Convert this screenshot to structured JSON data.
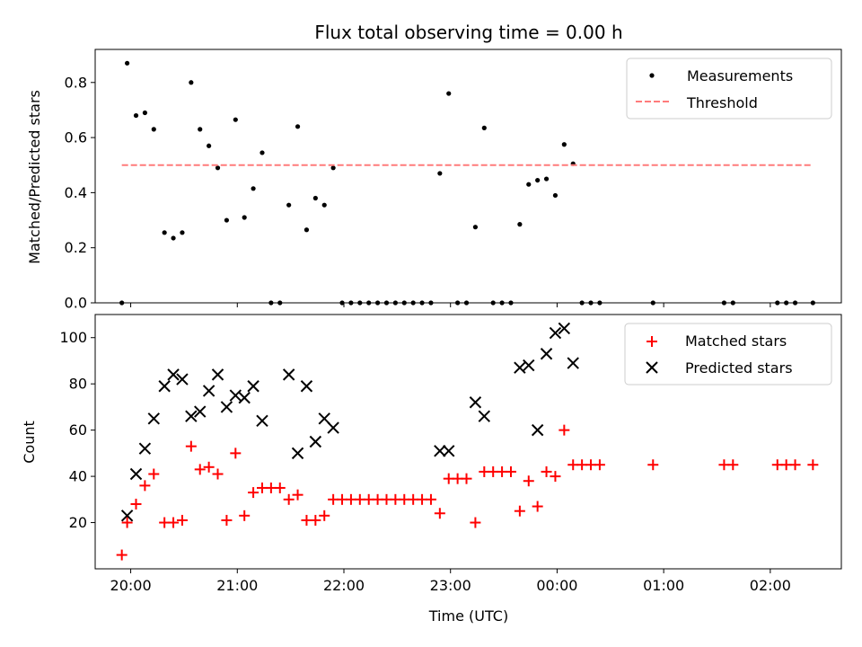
{
  "chart_data": [
    {
      "type": "scatter",
      "title": "Flux total observing time = 0.00 h",
      "xlabel": "",
      "ylabel": "Matched/Predicted stars",
      "xlim": [
        "19:40",
        "02:40"
      ],
      "ylim": [
        0,
        0.92
      ],
      "yticks": [
        0.0,
        0.2,
        0.4,
        0.6,
        0.8
      ],
      "ytick_labels": [
        "0.0",
        "0.2",
        "0.4",
        "0.6",
        "0.8"
      ],
      "grid": false,
      "legend_position": "top-right",
      "series": [
        {
          "name": "Measurements",
          "marker": "dot",
          "color": "#000000",
          "points": [
            [
              "19:55",
              0.0
            ],
            [
              "19:58",
              0.87
            ],
            [
              "20:03",
              0.68
            ],
            [
              "20:08",
              0.69
            ],
            [
              "20:13",
              0.63
            ],
            [
              "20:19",
              0.255
            ],
            [
              "20:24",
              0.235
            ],
            [
              "20:29",
              0.255
            ],
            [
              "20:34",
              0.8
            ],
            [
              "20:39",
              0.63
            ],
            [
              "20:44",
              0.57
            ],
            [
              "20:49",
              0.49
            ],
            [
              "20:54",
              0.3
            ],
            [
              "20:59",
              0.665
            ],
            [
              "21:04",
              0.31
            ],
            [
              "21:09",
              0.415
            ],
            [
              "21:14",
              0.545
            ],
            [
              "21:19",
              0.0
            ],
            [
              "21:24",
              0.0
            ],
            [
              "21:29",
              0.355
            ],
            [
              "21:34",
              0.64
            ],
            [
              "21:39",
              0.265
            ],
            [
              "21:44",
              0.38
            ],
            [
              "21:49",
              0.355
            ],
            [
              "21:54",
              0.49
            ],
            [
              "21:59",
              0.0
            ],
            [
              "22:04",
              0.0
            ],
            [
              "22:09",
              0.0
            ],
            [
              "22:14",
              0.0
            ],
            [
              "22:19",
              0.0
            ],
            [
              "22:24",
              0.0
            ],
            [
              "22:29",
              0.0
            ],
            [
              "22:34",
              0.0
            ],
            [
              "22:39",
              0.0
            ],
            [
              "22:44",
              0.0
            ],
            [
              "22:49",
              0.0
            ],
            [
              "22:54",
              0.47
            ],
            [
              "22:59",
              0.76
            ],
            [
              "23:04",
              0.0
            ],
            [
              "23:09",
              0.0
            ],
            [
              "23:14",
              0.275
            ],
            [
              "23:19",
              0.635
            ],
            [
              "23:24",
              0.0
            ],
            [
              "23:29",
              0.0
            ],
            [
              "23:34",
              0.0
            ],
            [
              "23:39",
              0.285
            ],
            [
              "23:44",
              0.43
            ],
            [
              "23:49",
              0.445
            ],
            [
              "23:54",
              0.45
            ],
            [
              "23:59",
              0.39
            ],
            [
              "00:04",
              0.575
            ],
            [
              "00:09",
              0.505
            ],
            [
              "00:14",
              0.0
            ],
            [
              "00:19",
              0.0
            ],
            [
              "00:24",
              0.0
            ],
            [
              "00:54",
              0.0
            ],
            [
              "01:34",
              0.0
            ],
            [
              "01:39",
              0.0
            ],
            [
              "02:04",
              0.0
            ],
            [
              "02:09",
              0.0
            ],
            [
              "02:14",
              0.0
            ],
            [
              "02:24",
              0.0
            ]
          ]
        },
        {
          "name": "Threshold",
          "marker": "dashed-line",
          "color": "#ff7b7b",
          "points": [
            [
              "19:55",
              0.5
            ],
            [
              "02:24",
              0.5
            ]
          ]
        }
      ]
    },
    {
      "type": "scatter",
      "title": "",
      "xlabel": "Time (UTC)",
      "ylabel": "Count",
      "xlim": [
        "19:40",
        "02:40"
      ],
      "ylim": [
        0,
        110
      ],
      "yticks": [
        20,
        40,
        60,
        80,
        100
      ],
      "ytick_labels": [
        "20",
        "40",
        "60",
        "80",
        "100"
      ],
      "xticks": [
        "20:00",
        "21:00",
        "22:00",
        "23:00",
        "00:00",
        "01:00",
        "02:00"
      ],
      "grid": false,
      "legend_position": "top-right",
      "series": [
        {
          "name": "Matched stars",
          "marker": "plus",
          "color": "#ff0000",
          "points": [
            [
              "19:55",
              6
            ],
            [
              "19:58",
              20
            ],
            [
              "20:03",
              28
            ],
            [
              "20:08",
              36
            ],
            [
              "20:13",
              41
            ],
            [
              "20:19",
              20
            ],
            [
              "20:24",
              20
            ],
            [
              "20:29",
              21
            ],
            [
              "20:34",
              53
            ],
            [
              "20:39",
              43
            ],
            [
              "20:44",
              44
            ],
            [
              "20:49",
              41
            ],
            [
              "20:54",
              21
            ],
            [
              "20:59",
              50
            ],
            [
              "21:04",
              23
            ],
            [
              "21:09",
              33
            ],
            [
              "21:14",
              35
            ],
            [
              "21:19",
              35
            ],
            [
              "21:24",
              35
            ],
            [
              "21:29",
              30
            ],
            [
              "21:34",
              32
            ],
            [
              "21:39",
              21
            ],
            [
              "21:44",
              21
            ],
            [
              "21:49",
              23
            ],
            [
              "21:54",
              30
            ],
            [
              "21:59",
              30
            ],
            [
              "22:04",
              30
            ],
            [
              "22:09",
              30
            ],
            [
              "22:14",
              30
            ],
            [
              "22:19",
              30
            ],
            [
              "22:24",
              30
            ],
            [
              "22:29",
              30
            ],
            [
              "22:34",
              30
            ],
            [
              "22:39",
              30
            ],
            [
              "22:44",
              30
            ],
            [
              "22:49",
              30
            ],
            [
              "22:54",
              24
            ],
            [
              "22:59",
              39
            ],
            [
              "23:04",
              39
            ],
            [
              "23:09",
              39
            ],
            [
              "23:14",
              20
            ],
            [
              "23:19",
              42
            ],
            [
              "23:24",
              42
            ],
            [
              "23:29",
              42
            ],
            [
              "23:34",
              42
            ],
            [
              "23:39",
              25
            ],
            [
              "23:44",
              38
            ],
            [
              "23:49",
              27
            ],
            [
              "23:54",
              42
            ],
            [
              "23:59",
              40
            ],
            [
              "00:04",
              60
            ],
            [
              "00:09",
              45
            ],
            [
              "00:14",
              45
            ],
            [
              "00:19",
              45
            ],
            [
              "00:24",
              45
            ],
            [
              "00:54",
              45
            ],
            [
              "01:34",
              45
            ],
            [
              "01:39",
              45
            ],
            [
              "02:04",
              45
            ],
            [
              "02:09",
              45
            ],
            [
              "02:14",
              45
            ],
            [
              "02:24",
              45
            ]
          ]
        },
        {
          "name": "Predicted stars",
          "marker": "x",
          "color": "#000000",
          "points": [
            [
              "19:58",
              23
            ],
            [
              "20:03",
              41
            ],
            [
              "20:08",
              52
            ],
            [
              "20:13",
              65
            ],
            [
              "20:19",
              79
            ],
            [
              "20:24",
              84
            ],
            [
              "20:29",
              82
            ],
            [
              "20:34",
              66
            ],
            [
              "20:39",
              68
            ],
            [
              "20:44",
              77
            ],
            [
              "20:49",
              84
            ],
            [
              "20:54",
              70
            ],
            [
              "20:59",
              75
            ],
            [
              "21:04",
              74
            ],
            [
              "21:09",
              79
            ],
            [
              "21:14",
              64
            ],
            [
              "21:29",
              84
            ],
            [
              "21:34",
              50
            ],
            [
              "21:39",
              79
            ],
            [
              "21:44",
              55
            ],
            [
              "21:49",
              65
            ],
            [
              "21:54",
              61
            ],
            [
              "22:54",
              51
            ],
            [
              "22:59",
              51
            ],
            [
              "23:14",
              72
            ],
            [
              "23:19",
              66
            ],
            [
              "23:39",
              87
            ],
            [
              "23:44",
              88
            ],
            [
              "23:49",
              60
            ],
            [
              "23:54",
              93
            ],
            [
              "23:59",
              102
            ],
            [
              "00:04",
              104
            ],
            [
              "00:09",
              89
            ]
          ]
        }
      ]
    }
  ]
}
